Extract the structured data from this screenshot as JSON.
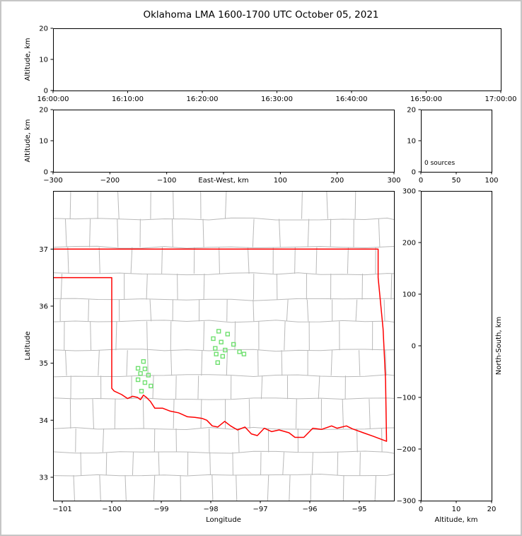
{
  "figure": {
    "title": "Oklahoma LMA 1600-1700 UTC October 05, 2021"
  },
  "chart_data": {
    "type": "scatter",
    "title": "Oklahoma LMA 1600-1700 UTC October 05, 2021",
    "legend_position": "none",
    "grid": false,
    "panels": {
      "time_height": {
        "name": "Altitude vs Time",
        "x_tick_labels": [
          "16:00:00",
          "16:10:00",
          "16:20:00",
          "16:30:00",
          "16:40:00",
          "16:50:00",
          "17:00:00"
        ],
        "ylabel": "Altitude, km",
        "y_ticks": [
          0,
          10,
          20
        ],
        "ylim": [
          0,
          20
        ],
        "points": []
      },
      "ew_height": {
        "name": "Altitude vs East-West distance",
        "xlabel": "East-West, km",
        "x_ticks": [
          -300,
          -200,
          -100,
          0,
          100,
          200,
          300
        ],
        "xlim": [
          -300,
          300
        ],
        "xlabel_inline_at_zero": true,
        "ylabel": "Altitude, km",
        "y_ticks": [
          0,
          10,
          20
        ],
        "ylim": [
          0,
          20
        ],
        "points": []
      },
      "source_histogram": {
        "name": "Altitude source histogram",
        "x_ticks": [
          0,
          50,
          100
        ],
        "xlim": [
          0,
          100
        ],
        "y_ticks": [
          0,
          10,
          20
        ],
        "ylim": [
          0,
          20
        ],
        "annotation": "0 sources",
        "values": []
      },
      "plan_view": {
        "name": "Plan view map",
        "xlabel": "Longitude",
        "ylabel": "Latitude",
        "x_ticks": [
          -101,
          -100,
          -99,
          -98,
          -97,
          -96,
          -95
        ],
        "xlim": [
          -101.186,
          -94.3
        ],
        "y_ticks": [
          33,
          34,
          35,
          36,
          37
        ],
        "ylim": [
          32.59,
          38.02
        ],
        "sources": [],
        "stations": [
          [
            -99.36,
            35.03
          ],
          [
            -99.47,
            34.91
          ],
          [
            -99.33,
            34.9
          ],
          [
            -99.42,
            34.82
          ],
          [
            -99.26,
            34.79
          ],
          [
            -99.47,
            34.71
          ],
          [
            -99.33,
            34.66
          ],
          [
            -99.21,
            34.6
          ],
          [
            -99.4,
            34.51
          ],
          [
            -97.84,
            35.56
          ],
          [
            -97.66,
            35.51
          ],
          [
            -97.95,
            35.43
          ],
          [
            -97.79,
            35.37
          ],
          [
            -97.54,
            35.33
          ],
          [
            -97.91,
            35.26
          ],
          [
            -97.71,
            35.23
          ],
          [
            -97.89,
            35.16
          ],
          [
            -97.76,
            35.12
          ],
          [
            -97.42,
            35.2
          ],
          [
            -97.33,
            35.16
          ],
          [
            -97.86,
            35.01
          ]
        ],
        "state_border": [
          [
            -101.19,
            36.5
          ],
          [
            -100.0,
            36.5
          ],
          [
            -100.0,
            34.56
          ],
          [
            -99.95,
            34.51
          ],
          [
            -99.8,
            34.45
          ],
          [
            -99.68,
            34.38
          ],
          [
            -99.58,
            34.42
          ],
          [
            -99.48,
            34.4
          ],
          [
            -99.42,
            34.36
          ],
          [
            -99.36,
            34.44
          ],
          [
            -99.3,
            34.4
          ],
          [
            -99.22,
            34.33
          ],
          [
            -99.13,
            34.21
          ],
          [
            -98.97,
            34.21
          ],
          [
            -98.82,
            34.16
          ],
          [
            -98.65,
            34.13
          ],
          [
            -98.47,
            34.06
          ],
          [
            -98.32,
            34.05
          ],
          [
            -98.17,
            34.03
          ],
          [
            -98.08,
            34.0
          ],
          [
            -97.97,
            33.9
          ],
          [
            -97.86,
            33.88
          ],
          [
            -97.72,
            33.98
          ],
          [
            -97.6,
            33.9
          ],
          [
            -97.46,
            33.83
          ],
          [
            -97.31,
            33.88
          ],
          [
            -97.18,
            33.76
          ],
          [
            -97.06,
            33.73
          ],
          [
            -96.92,
            33.86
          ],
          [
            -96.77,
            33.8
          ],
          [
            -96.62,
            33.83
          ],
          [
            -96.42,
            33.78
          ],
          [
            -96.3,
            33.7
          ],
          [
            -96.12,
            33.7
          ],
          [
            -95.94,
            33.86
          ],
          [
            -95.76,
            33.84
          ],
          [
            -95.56,
            33.9
          ],
          [
            -95.45,
            33.86
          ],
          [
            -95.26,
            33.9
          ],
          [
            -95.14,
            33.85
          ],
          [
            -94.92,
            33.78
          ],
          [
            -94.72,
            33.72
          ],
          [
            -94.45,
            33.63
          ],
          [
            -94.47,
            34.7
          ],
          [
            -94.52,
            35.6
          ],
          [
            -94.62,
            36.5
          ],
          [
            -94.62,
            37.0
          ],
          [
            -101.19,
            37.0
          ]
        ]
      },
      "ns_height": {
        "name": "North-South vs Altitude",
        "xlabel": "Altitude, km",
        "x_ticks": [
          0,
          10,
          20
        ],
        "xlim": [
          0,
          20
        ],
        "ylabel": "North-South, km",
        "y_ticks": [
          300,
          200,
          100,
          0,
          -100,
          -200,
          -300
        ],
        "ylim": [
          -300,
          300
        ],
        "points": []
      }
    },
    "colors": {
      "state_border": "#ff0000",
      "county_lines": "#b9b9b9",
      "station_marker": "#70e070",
      "frame": "#000000",
      "background": "#ffffff",
      "outer_border": "#c6c6c6"
    }
  }
}
